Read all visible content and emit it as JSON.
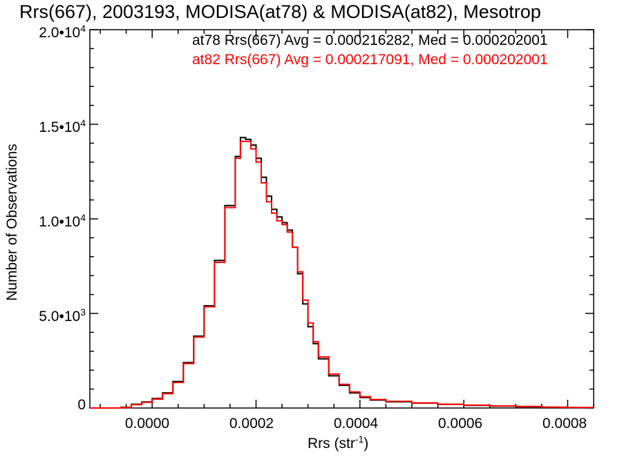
{
  "chart_data": {
    "type": "line",
    "step": true,
    "title": "Rrs(667), 2003193, MODISA(at78) & MODISA(at82), Mesotrop",
    "xlabel": "Rrs (str",
    "xlabel_sup": "-1",
    "xlabel_end": ")",
    "ylabel": "Number of Observations",
    "xlim": [
      -0.00012,
      0.00085
    ],
    "ylim": [
      0,
      20000
    ],
    "x_ticks": [
      {
        "value": 0.0,
        "label": "0.0000"
      },
      {
        "value": 0.0002,
        "label": "0.0002"
      },
      {
        "value": 0.0004,
        "label": "0.0004"
      },
      {
        "value": 0.0006,
        "label": "0.0006"
      },
      {
        "value": 0.0008,
        "label": "0.0008"
      }
    ],
    "y_ticks": [
      {
        "value": 0,
        "label": "0",
        "exp": ""
      },
      {
        "value": 5000,
        "label": "5.0•10",
        "exp": "3"
      },
      {
        "value": 10000,
        "label": "1.0•10",
        "exp": "4"
      },
      {
        "value": 15000,
        "label": "1.5•10",
        "exp": "4"
      },
      {
        "value": 20000,
        "label": "2.0•10",
        "exp": "4"
      }
    ],
    "legend_position": "top-right",
    "series": [
      {
        "name": "at78",
        "color": "#000000",
        "stat_text": "at78 Rrs(667) Avg = 0.000216282, Med = 0.000202001",
        "points": [
          [
            -0.00012,
            0
          ],
          [
            -8e-05,
            0
          ],
          [
            -6e-05,
            40
          ],
          [
            -4e-05,
            200
          ],
          [
            -2e-05,
            320
          ],
          [
            0.0,
            500
          ],
          [
            2e-05,
            800
          ],
          [
            4e-05,
            1400
          ],
          [
            6e-05,
            2400
          ],
          [
            8e-05,
            3800
          ],
          [
            0.0001,
            5400
          ],
          [
            0.00012,
            7800
          ],
          [
            0.00014,
            10700
          ],
          [
            0.00016,
            13300
          ],
          [
            0.00017,
            14300
          ],
          [
            0.00018,
            14200
          ],
          [
            0.00019,
            13900
          ],
          [
            0.0002,
            13200
          ],
          [
            0.00021,
            12200
          ],
          [
            0.00022,
            11200
          ],
          [
            0.00023,
            10500
          ],
          [
            0.00024,
            10100
          ],
          [
            0.00025,
            9800
          ],
          [
            0.00026,
            9400
          ],
          [
            0.00027,
            8500
          ],
          [
            0.00028,
            7100
          ],
          [
            0.00029,
            5500
          ],
          [
            0.0003,
            4300
          ],
          [
            0.00031,
            3400
          ],
          [
            0.00032,
            2600
          ],
          [
            0.00034,
            1700
          ],
          [
            0.00036,
            1200
          ],
          [
            0.00038,
            800
          ],
          [
            0.0004,
            560
          ],
          [
            0.00042,
            420
          ],
          [
            0.00045,
            330
          ],
          [
            0.0005,
            260
          ],
          [
            0.00055,
            190
          ],
          [
            0.0006,
            140
          ],
          [
            0.00065,
            100
          ],
          [
            0.0007,
            70
          ],
          [
            0.00075,
            40
          ],
          [
            0.0008,
            20
          ],
          [
            0.00085,
            10
          ]
        ]
      },
      {
        "name": "at82",
        "color": "#ff0000",
        "stat_text": "at82 Rrs(667) Avg = 0.000217091, Med = 0.000202001",
        "points": [
          [
            -0.00012,
            0
          ],
          [
            -8e-05,
            0
          ],
          [
            -6e-05,
            30
          ],
          [
            -4e-05,
            180
          ],
          [
            -2e-05,
            300
          ],
          [
            0.0,
            470
          ],
          [
            2e-05,
            760
          ],
          [
            4e-05,
            1350
          ],
          [
            6e-05,
            2350
          ],
          [
            8e-05,
            3750
          ],
          [
            0.0001,
            5350
          ],
          [
            0.00012,
            7700
          ],
          [
            0.00014,
            10600
          ],
          [
            0.00016,
            13200
          ],
          [
            0.00017,
            14100
          ],
          [
            0.00018,
            14100
          ],
          [
            0.00019,
            13700
          ],
          [
            0.0002,
            13000
          ],
          [
            0.00021,
            11900
          ],
          [
            0.00022,
            10900
          ],
          [
            0.00023,
            10300
          ],
          [
            0.00024,
            9900
          ],
          [
            0.00025,
            9700
          ],
          [
            0.00026,
            9300
          ],
          [
            0.00027,
            8500
          ],
          [
            0.00028,
            7200
          ],
          [
            0.00029,
            5700
          ],
          [
            0.0003,
            4500
          ],
          [
            0.00031,
            3500
          ],
          [
            0.00032,
            2700
          ],
          [
            0.00034,
            1800
          ],
          [
            0.00036,
            1250
          ],
          [
            0.00038,
            850
          ],
          [
            0.0004,
            600
          ],
          [
            0.00042,
            450
          ],
          [
            0.00045,
            350
          ],
          [
            0.0005,
            270
          ],
          [
            0.00055,
            200
          ],
          [
            0.0006,
            150
          ],
          [
            0.00065,
            110
          ],
          [
            0.0007,
            80
          ],
          [
            0.00075,
            45
          ],
          [
            0.0008,
            25
          ],
          [
            0.00085,
            12
          ]
        ]
      }
    ]
  }
}
